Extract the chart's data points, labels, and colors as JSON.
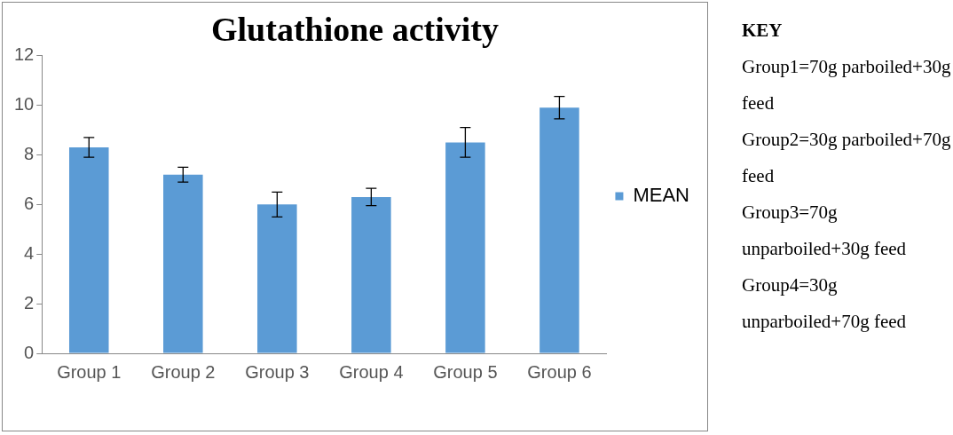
{
  "chart_data": {
    "type": "bar",
    "title": "Glutathione activity",
    "categories": [
      "Group 1",
      "Group 2",
      "Group 3",
      "Group 4",
      "Group 5",
      "Group 6"
    ],
    "series": [
      {
        "name": "MEAN",
        "color": "#5b9bd5",
        "values": [
          8.3,
          7.2,
          6.0,
          6.3,
          8.5,
          9.9
        ],
        "errors": [
          0.4,
          0.3,
          0.5,
          0.35,
          0.6,
          0.45
        ]
      }
    ],
    "ylim": [
      0,
      12
    ],
    "yticks": [
      0,
      2,
      4,
      6,
      8,
      10,
      12
    ],
    "grid": false,
    "legend": "right",
    "annotations": [
      "KEY",
      "Group1=70g parboiled+30g feed",
      "Group2=30g parboiled+70g feed",
      "Group3=70g unparboiled+30g feed",
      "Group4=30g unparboiled+70g feed"
    ]
  }
}
